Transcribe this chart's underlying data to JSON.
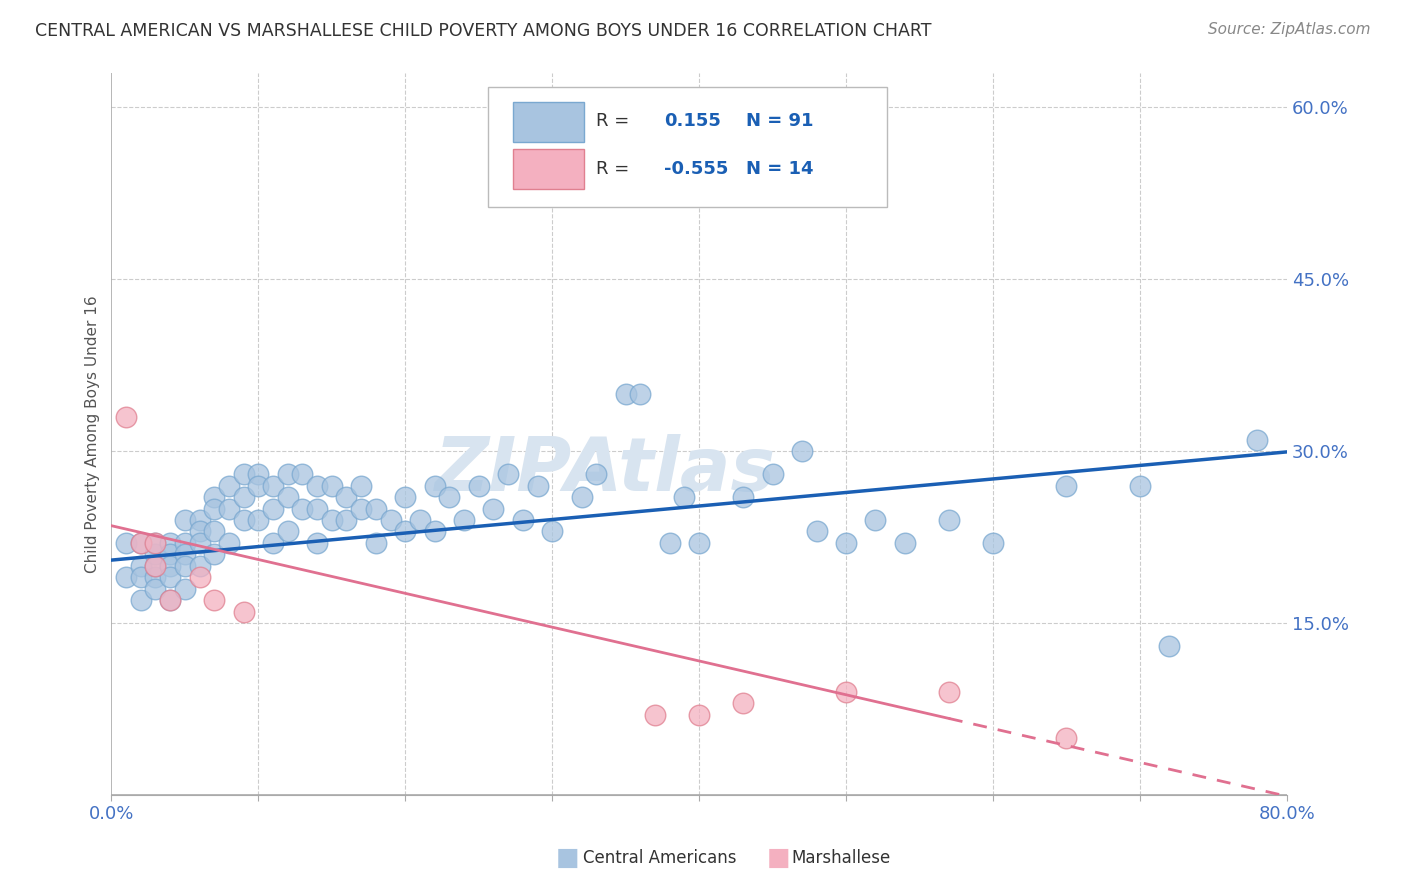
{
  "title": "CENTRAL AMERICAN VS MARSHALLESE CHILD POVERTY AMONG BOYS UNDER 16 CORRELATION CHART",
  "source": "Source: ZipAtlas.com",
  "ylabel": "Child Poverty Among Boys Under 16",
  "xlim": [
    0.0,
    0.8
  ],
  "ylim": [
    0.0,
    0.63
  ],
  "ytick_positions": [
    0.15,
    0.3,
    0.45,
    0.6
  ],
  "ytick_labels": [
    "15.0%",
    "30.0%",
    "45.0%",
    "60.0%"
  ],
  "R_central": 0.155,
  "N_central": 91,
  "R_marshall": -0.555,
  "N_marshall": 14,
  "blue_color": "#a8c4e0",
  "blue_edge_color": "#7aa8d0",
  "pink_color": "#f4b0c0",
  "pink_edge_color": "#e08090",
  "blue_line_color": "#1a5fb4",
  "pink_line_color": "#e07090",
  "legend_R_color": "#1a5fb4",
  "watermark_color": "#d8e4f0",
  "background_color": "#ffffff",
  "central_x": [
    0.01,
    0.01,
    0.02,
    0.02,
    0.02,
    0.02,
    0.03,
    0.03,
    0.03,
    0.03,
    0.03,
    0.04,
    0.04,
    0.04,
    0.04,
    0.04,
    0.05,
    0.05,
    0.05,
    0.05,
    0.05,
    0.06,
    0.06,
    0.06,
    0.06,
    0.07,
    0.07,
    0.07,
    0.07,
    0.08,
    0.08,
    0.08,
    0.09,
    0.09,
    0.09,
    0.1,
    0.1,
    0.1,
    0.11,
    0.11,
    0.11,
    0.12,
    0.12,
    0.12,
    0.13,
    0.13,
    0.14,
    0.14,
    0.14,
    0.15,
    0.15,
    0.16,
    0.16,
    0.17,
    0.17,
    0.18,
    0.18,
    0.19,
    0.2,
    0.2,
    0.21,
    0.22,
    0.22,
    0.23,
    0.24,
    0.25,
    0.26,
    0.27,
    0.28,
    0.29,
    0.3,
    0.32,
    0.33,
    0.35,
    0.36,
    0.38,
    0.39,
    0.4,
    0.43,
    0.45,
    0.47,
    0.48,
    0.5,
    0.52,
    0.54,
    0.57,
    0.6,
    0.65,
    0.7,
    0.72,
    0.78
  ],
  "central_y": [
    0.19,
    0.22,
    0.2,
    0.22,
    0.19,
    0.17,
    0.21,
    0.22,
    0.19,
    0.18,
    0.2,
    0.22,
    0.21,
    0.2,
    0.19,
    0.17,
    0.24,
    0.22,
    0.21,
    0.2,
    0.18,
    0.24,
    0.23,
    0.22,
    0.2,
    0.26,
    0.25,
    0.23,
    0.21,
    0.27,
    0.25,
    0.22,
    0.28,
    0.26,
    0.24,
    0.28,
    0.27,
    0.24,
    0.27,
    0.25,
    0.22,
    0.28,
    0.26,
    0.23,
    0.28,
    0.25,
    0.27,
    0.25,
    0.22,
    0.27,
    0.24,
    0.26,
    0.24,
    0.27,
    0.25,
    0.25,
    0.22,
    0.24,
    0.26,
    0.23,
    0.24,
    0.27,
    0.23,
    0.26,
    0.24,
    0.27,
    0.25,
    0.28,
    0.24,
    0.27,
    0.23,
    0.26,
    0.28,
    0.35,
    0.35,
    0.22,
    0.26,
    0.22,
    0.26,
    0.28,
    0.3,
    0.23,
    0.22,
    0.24,
    0.22,
    0.24,
    0.22,
    0.27,
    0.27,
    0.13,
    0.31
  ],
  "marshall_x": [
    0.01,
    0.02,
    0.03,
    0.03,
    0.04,
    0.06,
    0.07,
    0.09,
    0.37,
    0.4,
    0.43,
    0.5,
    0.57,
    0.65
  ],
  "marshall_y": [
    0.33,
    0.22,
    0.22,
    0.2,
    0.17,
    0.19,
    0.17,
    0.16,
    0.07,
    0.07,
    0.08,
    0.09,
    0.09,
    0.05
  ],
  "blue_intercept": 0.205,
  "blue_slope": 0.118,
  "pink_intercept": 0.235,
  "pink_slope": -0.295
}
